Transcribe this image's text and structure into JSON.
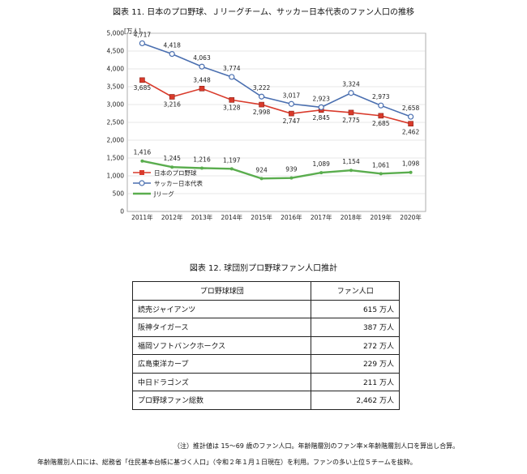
{
  "figure11": {
    "title": "図表 11. 日本のプロ野球、Ｊリーグチーム、サッカー日本代表のファン人口の推移",
    "unit_label": "[万人]"
  },
  "chart_data": {
    "type": "line",
    "title": "図表 11. 日本のプロ野球、Ｊリーグチーム、サッカー日本代表のファン人口の推移",
    "ylabel": "[万人]",
    "ylim": [
      0,
      5000
    ],
    "yticks": [
      "0",
      "500",
      "1,000",
      "1,500",
      "2,000",
      "2,500",
      "3,000",
      "3,500",
      "4,000",
      "4,500",
      "5,000"
    ],
    "categories": [
      "2011年",
      "2012年",
      "2013年",
      "2014年",
      "2015年",
      "2016年",
      "2017年",
      "2018年",
      "2019年",
      "2020年"
    ],
    "grid": true,
    "legend": "left",
    "series": [
      {
        "name": "日本のプロ野球",
        "color": "#d93a2b",
        "marker": "square",
        "values": [
          3685,
          3216,
          3448,
          3128,
          2998,
          2747,
          2845,
          2775,
          2685,
          2462
        ],
        "labels": [
          "3,685",
          "3,216",
          "3,448",
          "3,128",
          "2,998",
          "2,747",
          "2,845",
          "2,775",
          "2,685",
          "2,462"
        ]
      },
      {
        "name": "サッカー日本代表",
        "color": "#4a6fb0",
        "marker": "circle",
        "values": [
          4717,
          4418,
          4063,
          3774,
          3222,
          3017,
          2923,
          3324,
          2973,
          2658
        ],
        "labels": [
          "4,717",
          "4,418",
          "4,063",
          "3,774",
          "3,222",
          "3,017",
          "2,923",
          "3,324",
          "2,973",
          "2,658"
        ]
      },
      {
        "name": "Jリーグ",
        "color": "#5aad4e",
        "marker": "none",
        "values": [
          1416,
          1245,
          1216,
          1197,
          924,
          939,
          1089,
          1154,
          1061,
          1098
        ],
        "labels": [
          "1,416",
          "1,245",
          "1,216",
          "1,197",
          "924",
          "939",
          "1,089",
          "1,154",
          "1,061",
          "1,098"
        ]
      }
    ]
  },
  "figure12": {
    "title": "図表 12. 球団別プロ野球ファン人口推計",
    "headers": [
      "プロ野球球団",
      "ファン人口"
    ],
    "rows": [
      {
        "team": "読売ジャイアンツ",
        "fans": "615 万人"
      },
      {
        "team": "阪神タイガース",
        "fans": "387 万人"
      },
      {
        "team": "福岡ソフトバンクホークス",
        "fans": "272 万人"
      },
      {
        "team": "広島東洋カープ",
        "fans": "229 万人"
      },
      {
        "team": "中日ドラゴンズ",
        "fans": "211 万人"
      },
      {
        "team": "プロ野球ファン総数",
        "fans": "2,462 万人"
      }
    ]
  },
  "notes": {
    "line1": "（注）推計値は 15～69 歳のファン人口。年齢階層別のファン率×年齢階層別人口を算出し合算。",
    "line2": "年齢階層別人口には、総務省「住民基本台帳に基づく人口」（令和２年１月１日現在）を利用。ファンの多い上位５チームを抜粋。"
  }
}
